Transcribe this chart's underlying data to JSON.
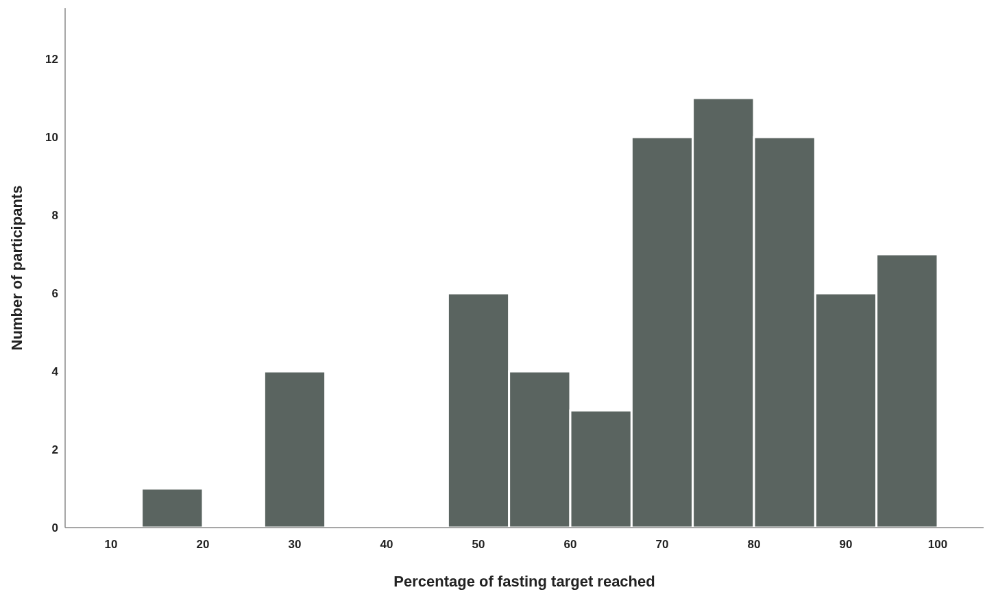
{
  "chart_data": {
    "type": "histogram",
    "xlabel": "Percentage of fasting target reached",
    "ylabel": "Number of participants",
    "bins": [
      13.33,
      20,
      26.67,
      33.33,
      40,
      46.67,
      53.33,
      60,
      66.67,
      73.33,
      80,
      86.67,
      93.33,
      100
    ],
    "values": [
      1,
      0,
      4,
      0,
      0,
      6,
      4,
      3,
      10,
      11,
      10,
      6,
      7
    ],
    "color": "#5a6460",
    "xlim": [
      5,
      105
    ],
    "xticks": [
      10,
      20,
      30,
      40,
      50,
      60,
      70,
      80,
      90,
      100
    ],
    "ylim": [
      0,
      13.3
    ],
    "yticks": [
      0,
      2,
      4,
      6,
      8,
      10,
      12
    ],
    "grid": false
  }
}
